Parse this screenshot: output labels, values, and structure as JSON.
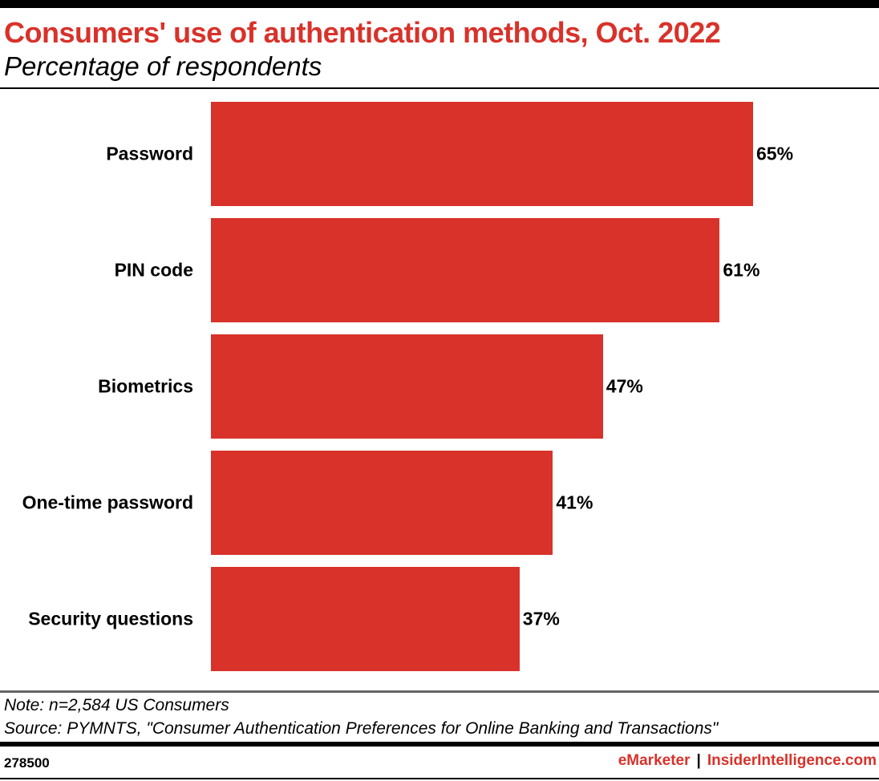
{
  "header": {
    "title": "Consumers' use of authentication methods, Oct. 2022",
    "subtitle": "Percentage of respondents"
  },
  "chart_data": {
    "type": "bar",
    "orientation": "horizontal",
    "title": "Consumers' use of authentication methods, Oct. 2022",
    "subtitle": "Percentage of respondents",
    "categories": [
      "Password",
      "PIN code",
      "Biometrics",
      "One-time password",
      "Security questions"
    ],
    "values": [
      65,
      61,
      47,
      41,
      37
    ],
    "value_labels": [
      "65%",
      "61%",
      "47%",
      "41%",
      "37%"
    ],
    "unit": "%",
    "grid": false,
    "legend": "none",
    "bar_color": "#d8322a"
  },
  "footer": {
    "note": "Note: n=2,584 US Consumers",
    "source": "Source: PYMNTS, \"Consumer Authentication Preferences for Online Banking and Transactions\"",
    "chart_id": "278500",
    "brand_emarketer": "eMarketer",
    "brand_separator": "|",
    "brand_insider": "InsiderIntelligence.com"
  },
  "colors": {
    "accent": "#d8322a",
    "text": "#000000"
  }
}
